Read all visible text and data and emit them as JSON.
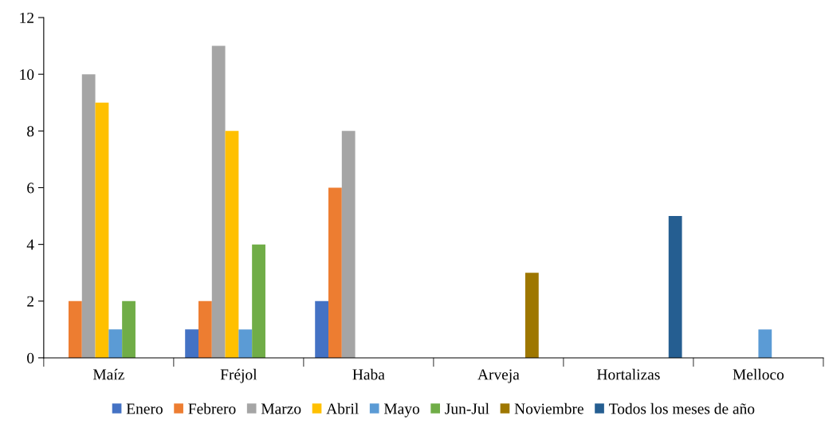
{
  "chart_data": {
    "type": "bar",
    "categories": [
      "Maíz",
      "Fréjol",
      "Haba",
      "Arveja",
      "Hortalizas",
      "Melloco"
    ],
    "series": [
      {
        "name": "Enero",
        "color": "#4472c4",
        "values": [
          null,
          1,
          2,
          null,
          null,
          null
        ]
      },
      {
        "name": "Febrero",
        "color": "#ed7d31",
        "values": [
          2,
          2,
          6,
          null,
          null,
          null
        ]
      },
      {
        "name": "Marzo",
        "color": "#a5a5a5",
        "values": [
          10,
          11,
          8,
          null,
          null,
          null
        ]
      },
      {
        "name": "Abril",
        "color": "#ffc000",
        "values": [
          9,
          8,
          null,
          null,
          null,
          null
        ]
      },
      {
        "name": "Mayo",
        "color": "#5b9bd5",
        "values": [
          1,
          1,
          null,
          null,
          null,
          1
        ]
      },
      {
        "name": "Jun-Jul",
        "color": "#70ad47",
        "values": [
          2,
          4,
          null,
          null,
          null,
          null
        ]
      },
      {
        "name": "Noviembre",
        "color": "#9e7700",
        "values": [
          null,
          null,
          null,
          3,
          null,
          null
        ]
      },
      {
        "name": "Todos los meses de año",
        "color": "#255e91",
        "values": [
          null,
          null,
          null,
          null,
          5,
          null
        ]
      }
    ],
    "ylim": [
      0,
      12
    ],
    "yticks": [
      0,
      2,
      4,
      6,
      8,
      10,
      12
    ],
    "grid": false,
    "legend": "bottom"
  }
}
